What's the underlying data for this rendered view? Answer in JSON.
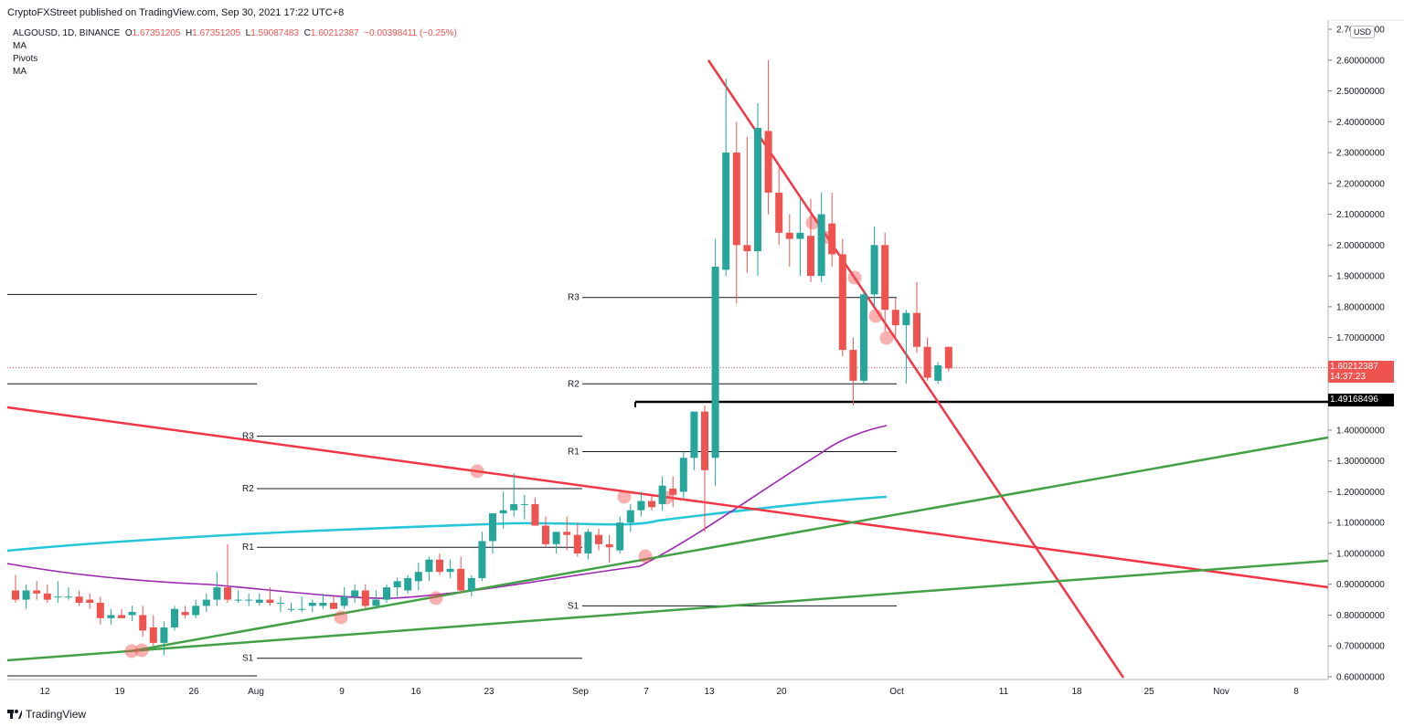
{
  "header": {
    "publisher": "CryptoFXStreet published on TradingView.com, Sep 30, 2021 17:22 UTC+8"
  },
  "legend": {
    "symbol": "ALGOUSD, 1D, BINANCE",
    "open_label": "O",
    "open": "1.67351205",
    "high_label": "H",
    "high": "1.67351205",
    "low_label": "L",
    "low": "1.59087483",
    "close_label": "C",
    "close": "1.60212387",
    "change": "−0.00398411 (−0.25%)",
    "indicators": [
      "MA",
      "Pivots",
      "MA"
    ]
  },
  "price_axis": {
    "currency": "USD",
    "last_price": "1.60212387",
    "countdown": "14:37:23",
    "marked_level": "1.49168496"
  },
  "footer": {
    "brand": "TradingView"
  },
  "colors": {
    "up": "#26a69a",
    "down": "#ef5350",
    "trend_red": "#f23645",
    "trend_green": "#43a047",
    "ma_purple": "#9c27b0",
    "ma_cyan": "#26c6da"
  },
  "chart_data": {
    "type": "candlestick",
    "symbol": "ALGOUSD",
    "timeframe": "1D",
    "x_ticks": [
      "12",
      "19",
      "26",
      "Aug",
      "9",
      "16",
      "23",
      "Sep",
      "7",
      "13",
      "20",
      "Oct",
      "11",
      "18",
      "25",
      "Nov",
      "8"
    ],
    "y_ticks": [
      "0.60000000",
      "0.70000000",
      "0.80000000",
      "0.90000000",
      "1.00000000",
      "1.10000000",
      "1.20000000",
      "1.30000000",
      "1.40000000",
      "1.50000000",
      "1.60000000",
      "1.70000000",
      "1.80000000",
      "1.90000000",
      "2.00000000",
      "2.10000000",
      "2.20000000",
      "2.30000000",
      "2.40000000",
      "2.50000000",
      "2.60000000",
      "2.70000000"
    ],
    "ylim": [
      0.59,
      2.72
    ],
    "candles": [
      {
        "o": 0.88,
        "h": 0.93,
        "l": 0.84,
        "c": 0.85
      },
      {
        "o": 0.85,
        "h": 0.9,
        "l": 0.82,
        "c": 0.88
      },
      {
        "o": 0.88,
        "h": 0.91,
        "l": 0.85,
        "c": 0.87
      },
      {
        "o": 0.87,
        "h": 0.9,
        "l": 0.84,
        "c": 0.85
      },
      {
        "o": 0.86,
        "h": 0.91,
        "l": 0.84,
        "c": 0.86
      },
      {
        "o": 0.86,
        "h": 0.89,
        "l": 0.85,
        "c": 0.86
      },
      {
        "o": 0.86,
        "h": 0.88,
        "l": 0.83,
        "c": 0.84
      },
      {
        "o": 0.85,
        "h": 0.87,
        "l": 0.82,
        "c": 0.84
      },
      {
        "o": 0.84,
        "h": 0.86,
        "l": 0.77,
        "c": 0.79
      },
      {
        "o": 0.79,
        "h": 0.82,
        "l": 0.77,
        "c": 0.8
      },
      {
        "o": 0.8,
        "h": 0.82,
        "l": 0.79,
        "c": 0.79
      },
      {
        "o": 0.8,
        "h": 0.83,
        "l": 0.78,
        "c": 0.81
      },
      {
        "o": 0.8,
        "h": 0.83,
        "l": 0.73,
        "c": 0.75
      },
      {
        "o": 0.76,
        "h": 0.8,
        "l": 0.7,
        "c": 0.71
      },
      {
        "o": 0.71,
        "h": 0.78,
        "l": 0.67,
        "c": 0.76
      },
      {
        "o": 0.76,
        "h": 0.83,
        "l": 0.75,
        "c": 0.82
      },
      {
        "o": 0.81,
        "h": 0.83,
        "l": 0.79,
        "c": 0.8
      },
      {
        "o": 0.8,
        "h": 0.85,
        "l": 0.79,
        "c": 0.83
      },
      {
        "o": 0.83,
        "h": 0.87,
        "l": 0.81,
        "c": 0.85
      },
      {
        "o": 0.85,
        "h": 0.94,
        "l": 0.83,
        "c": 0.89
      },
      {
        "o": 0.89,
        "h": 1.03,
        "l": 0.84,
        "c": 0.85
      },
      {
        "o": 0.85,
        "h": 0.88,
        "l": 0.84,
        "c": 0.85
      },
      {
        "o": 0.85,
        "h": 0.87,
        "l": 0.83,
        "c": 0.85
      },
      {
        "o": 0.84,
        "h": 0.87,
        "l": 0.83,
        "c": 0.85
      },
      {
        "o": 0.85,
        "h": 0.89,
        "l": 0.83,
        "c": 0.84
      },
      {
        "o": 0.84,
        "h": 0.86,
        "l": 0.81,
        "c": 0.84
      },
      {
        "o": 0.82,
        "h": 0.84,
        "l": 0.81,
        "c": 0.82
      },
      {
        "o": 0.82,
        "h": 0.86,
        "l": 0.81,
        "c": 0.82
      },
      {
        "o": 0.83,
        "h": 0.85,
        "l": 0.81,
        "c": 0.84
      },
      {
        "o": 0.83,
        "h": 0.87,
        "l": 0.82,
        "c": 0.84
      },
      {
        "o": 0.84,
        "h": 0.86,
        "l": 0.82,
        "c": 0.82
      },
      {
        "o": 0.83,
        "h": 0.89,
        "l": 0.82,
        "c": 0.86
      },
      {
        "o": 0.86,
        "h": 0.9,
        "l": 0.84,
        "c": 0.88
      },
      {
        "o": 0.88,
        "h": 0.9,
        "l": 0.82,
        "c": 0.83
      },
      {
        "o": 0.83,
        "h": 0.88,
        "l": 0.82,
        "c": 0.85
      },
      {
        "o": 0.85,
        "h": 0.9,
        "l": 0.84,
        "c": 0.89
      },
      {
        "o": 0.89,
        "h": 0.92,
        "l": 0.86,
        "c": 0.91
      },
      {
        "o": 0.88,
        "h": 0.93,
        "l": 0.87,
        "c": 0.92
      },
      {
        "o": 0.91,
        "h": 0.97,
        "l": 0.88,
        "c": 0.94
      },
      {
        "o": 0.94,
        "h": 0.99,
        "l": 0.91,
        "c": 0.98
      },
      {
        "o": 0.98,
        "h": 1.0,
        "l": 0.93,
        "c": 0.94
      },
      {
        "o": 0.94,
        "h": 0.98,
        "l": 0.92,
        "c": 0.95
      },
      {
        "o": 0.95,
        "h": 0.99,
        "l": 0.87,
        "c": 0.88
      },
      {
        "o": 0.88,
        "h": 0.93,
        "l": 0.86,
        "c": 0.92
      },
      {
        "o": 0.92,
        "h": 1.07,
        "l": 0.91,
        "c": 1.04
      },
      {
        "o": 1.04,
        "h": 1.12,
        "l": 1.0,
        "c": 1.13
      },
      {
        "o": 1.13,
        "h": 1.2,
        "l": 1.08,
        "c": 1.14
      },
      {
        "o": 1.14,
        "h": 1.26,
        "l": 1.12,
        "c": 1.16
      },
      {
        "o": 1.16,
        "h": 1.19,
        "l": 1.11,
        "c": 1.16
      },
      {
        "o": 1.16,
        "h": 1.18,
        "l": 1.11,
        "c": 1.09
      },
      {
        "o": 1.09,
        "h": 1.12,
        "l": 1.02,
        "c": 1.03
      },
      {
        "o": 1.03,
        "h": 1.07,
        "l": 1.0,
        "c": 1.07
      },
      {
        "o": 1.07,
        "h": 1.12,
        "l": 1.01,
        "c": 1.06
      },
      {
        "o": 1.06,
        "h": 1.1,
        "l": 0.99,
        "c": 1.0
      },
      {
        "o": 1.0,
        "h": 1.08,
        "l": 0.98,
        "c": 1.07
      },
      {
        "o": 1.06,
        "h": 1.08,
        "l": 1.01,
        "c": 1.03
      },
      {
        "o": 1.03,
        "h": 1.06,
        "l": 0.97,
        "c": 1.02
      },
      {
        "o": 1.01,
        "h": 1.12,
        "l": 1.0,
        "c": 1.1
      },
      {
        "o": 1.1,
        "h": 1.16,
        "l": 1.07,
        "c": 1.14
      },
      {
        "o": 1.14,
        "h": 1.2,
        "l": 1.12,
        "c": 1.17
      },
      {
        "o": 1.17,
        "h": 1.19,
        "l": 1.14,
        "c": 1.15
      },
      {
        "o": 1.16,
        "h": 1.25,
        "l": 1.14,
        "c": 1.22
      },
      {
        "o": 1.21,
        "h": 1.25,
        "l": 1.15,
        "c": 1.19
      },
      {
        "o": 1.2,
        "h": 1.33,
        "l": 1.18,
        "c": 1.31
      },
      {
        "o": 1.31,
        "h": 1.46,
        "l": 1.27,
        "c": 1.46
      },
      {
        "o": 1.46,
        "h": 1.48,
        "l": 1.07,
        "c": 1.27
      },
      {
        "o": 1.31,
        "h": 2.02,
        "l": 1.22,
        "c": 1.93
      },
      {
        "o": 1.92,
        "h": 2.54,
        "l": 1.9,
        "c": 2.3
      },
      {
        "o": 2.3,
        "h": 2.4,
        "l": 1.81,
        "c": 2.0
      },
      {
        "o": 2.0,
        "h": 2.35,
        "l": 1.91,
        "c": 1.98
      },
      {
        "o": 1.98,
        "h": 2.46,
        "l": 1.9,
        "c": 2.38
      },
      {
        "o": 2.37,
        "h": 2.6,
        "l": 2.1,
        "c": 2.17
      },
      {
        "o": 2.17,
        "h": 2.26,
        "l": 2.0,
        "c": 2.04
      },
      {
        "o": 2.04,
        "h": 2.1,
        "l": 1.93,
        "c": 2.02
      },
      {
        "o": 2.02,
        "h": 2.15,
        "l": 1.9,
        "c": 2.04
      },
      {
        "o": 2.03,
        "h": 2.15,
        "l": 1.88,
        "c": 1.9
      },
      {
        "o": 1.9,
        "h": 2.17,
        "l": 1.88,
        "c": 2.1
      },
      {
        "o": 2.07,
        "h": 2.17,
        "l": 1.93,
        "c": 1.97
      },
      {
        "o": 1.97,
        "h": 2.02,
        "l": 1.64,
        "c": 1.66
      },
      {
        "o": 1.66,
        "h": 1.7,
        "l": 1.48,
        "c": 1.56
      },
      {
        "o": 1.56,
        "h": 1.85,
        "l": 1.55,
        "c": 1.84
      },
      {
        "o": 1.84,
        "h": 2.06,
        "l": 1.8,
        "c": 2.0
      },
      {
        "o": 2.0,
        "h": 2.04,
        "l": 1.72,
        "c": 1.79
      },
      {
        "o": 1.79,
        "h": 1.83,
        "l": 1.69,
        "c": 1.74
      },
      {
        "o": 1.74,
        "h": 1.79,
        "l": 1.55,
        "c": 1.78
      },
      {
        "o": 1.78,
        "h": 1.88,
        "l": 1.65,
        "c": 1.67
      },
      {
        "o": 1.67,
        "h": 1.7,
        "l": 1.56,
        "c": 1.57
      },
      {
        "o": 1.56,
        "h": 1.62,
        "l": 1.55,
        "c": 1.61
      },
      {
        "o": 1.67,
        "h": 1.67,
        "l": 1.59,
        "c": 1.6
      }
    ],
    "pivot_sets": [
      {
        "from_index": 0,
        "to_index": 24,
        "labels": [
          "",
          ""
        ],
        "levels": [
          1.84,
          1.55
        ]
      },
      {
        "from_index": 24,
        "to_index": 55,
        "labels": [
          "R3",
          "R2",
          "R1",
          "S1"
        ],
        "levels": [
          1.38,
          1.21,
          1.02,
          0.66
        ]
      },
      {
        "from_index": 55,
        "to_index": 85,
        "labels": [
          "R3",
          "R2",
          "R1",
          "S1"
        ],
        "levels": [
          1.83,
          1.55,
          1.33,
          0.83
        ]
      }
    ],
    "horizontal_level": 1.49168496,
    "last_price": 1.60212387
  }
}
